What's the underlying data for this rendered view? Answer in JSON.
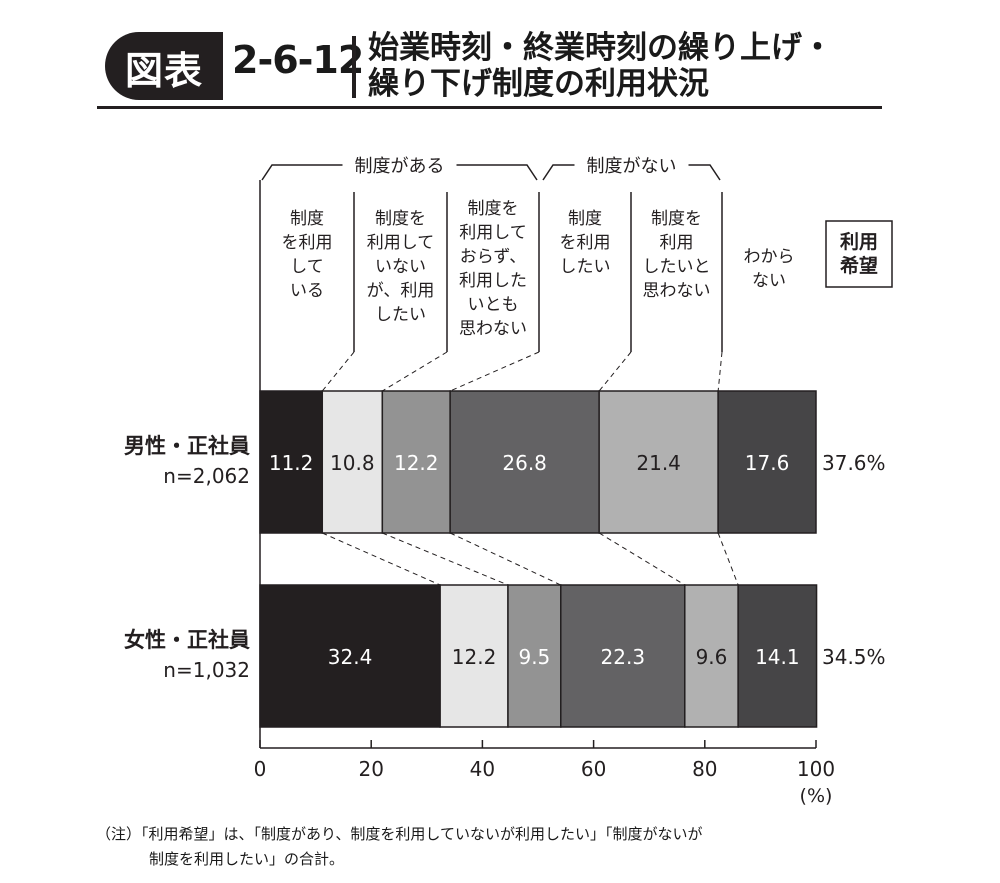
{
  "figure": {
    "label": "図表",
    "number": "2-6-12",
    "title_line1": "始業時刻・終業時刻の繰り上げ・",
    "title_line2": "繰り下げ制度の利用状況",
    "note_line1": "（注）「利用希望」は、「制度があり、制度を利用していないが利用したい」「制度がないが",
    "note_line2": "制度を利用したい」の合計。"
  },
  "chart_data": {
    "type": "bar",
    "orientation": "horizontal",
    "stacked": true,
    "categories": [
      "男性・正社員",
      "女性・正社員"
    ],
    "category_sub": [
      "n=2,062",
      "n=1,032"
    ],
    "groups": [
      {
        "label": "制度がある",
        "segments": [
          0,
          1,
          2
        ]
      },
      {
        "label": "制度がない",
        "segments": [
          3,
          4,
          5
        ]
      }
    ],
    "series": [
      {
        "name": "制度を利用している",
        "lines": [
          "制度",
          "を利用",
          "して",
          "いる"
        ],
        "values": [
          11.2,
          32.4
        ],
        "color": "#231f20",
        "label_color": "#ffffff"
      },
      {
        "name": "制度を利用していないが、利用したい",
        "lines": [
          "制度を",
          "利用して",
          "いない",
          "が、利用",
          "したい"
        ],
        "values": [
          10.8,
          12.2
        ],
        "color": "#e6e6e6",
        "label_color": "#231f20"
      },
      {
        "name": "制度を利用しておらず、利用したいとも思わない",
        "lines": [
          "制度を",
          "利用して",
          "おらず、",
          "利用した",
          "いとも",
          "思わない"
        ],
        "values": [
          12.2,
          9.5
        ],
        "color": "#939393",
        "label_color": "#ffffff"
      },
      {
        "name": "制度を利用したい",
        "lines": [
          "制度",
          "を利用",
          "したい"
        ],
        "values": [
          26.8,
          22.3
        ],
        "color": "#636264",
        "label_color": "#ffffff"
      },
      {
        "name": "制度を利用したいと思わない",
        "lines": [
          "制度を",
          "利用",
          "したいと",
          "思わない"
        ],
        "values": [
          21.4,
          9.6
        ],
        "color": "#b1b1b1",
        "label_color": "#231f20"
      },
      {
        "name": "わからない",
        "lines": [
          "わから",
          "ない"
        ],
        "values": [
          17.6,
          14.1
        ],
        "color": "#464547",
        "label_color": "#ffffff"
      }
    ],
    "side_column": {
      "lines": [
        "利用",
        "希望"
      ],
      "values": [
        "37.6%",
        "34.5%"
      ]
    },
    "xlim": [
      0,
      100
    ],
    "xticks": [
      0,
      20,
      40,
      60,
      80,
      100
    ],
    "xlabel": "(%)"
  }
}
